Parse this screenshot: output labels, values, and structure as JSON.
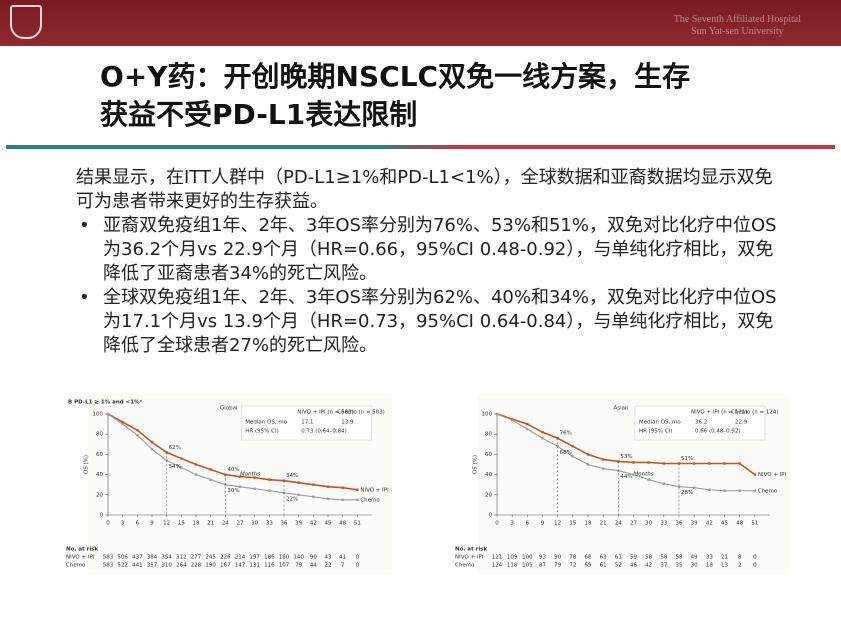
{
  "header": {
    "institution": [
      "The Seventh Affiliated Hospital",
      "Sun Yat-sen University"
    ]
  },
  "title": [
    "O+Y药：开创晚期NSCLC双免一线方案，生存",
    "获益不受PD-L1表达限制"
  ],
  "body": {
    "intro": "结果显示，在ITT人群中（PD-L1≥1%和PD-L1<1%），全球数据和亚裔数据均显示双免可为患者带来更好的生存获益。",
    "bullets": [
      "亚裔双免疫组1年、2年、3年OS率分别为76%、53%和51%，双免对比化疗中位OS为36.2个月vs 22.9个月（HR=0.66，95%CI 0.48-0.92），与单纯化疗相比，双免降低了亚裔患者34%的死亡风险。",
      "全球双免疫组1年、2年、3年OS率分别为62%、40%和34%，双免对比化疗中位OS为17.1个月vs 13.9个月（HR=0.73，95%CI 0.64-0.84），与单纯化疗相比，双免降低了全球患者27%的死亡风险。"
    ]
  },
  "chart_data": [
    {
      "type": "line",
      "panel_label": "B PD-L1 ≥ 1% and <1%ᵃ",
      "title": "Global",
      "xlabel": "Months",
      "ylabel": "OS (%)",
      "x": [
        0,
        3,
        6,
        9,
        12,
        15,
        18,
        21,
        24,
        27,
        30,
        33,
        36,
        39,
        42,
        45,
        48,
        51
      ],
      "series": [
        {
          "name": "NIVO + IPI",
          "color": "#c5522b",
          "values": [
            100,
            92,
            84,
            72,
            62,
            56,
            50,
            45,
            40,
            38,
            37,
            35,
            34,
            32,
            30,
            28,
            27,
            25
          ]
        },
        {
          "name": "Chemo",
          "color": "#9c9c9c",
          "values": [
            100,
            90,
            79,
            65,
            54,
            47,
            40,
            35,
            30,
            28,
            26,
            24,
            22,
            20,
            18,
            16,
            15,
            15
          ]
        }
      ],
      "annotations": [
        {
          "label": "62%",
          "x": 12,
          "value": 62
        },
        {
          "label": "54%",
          "x": 12,
          "value": 54
        },
        {
          "label": "40%",
          "x": 24,
          "value": 40
        },
        {
          "label": "30%",
          "x": 24,
          "value": 30
        },
        {
          "label": "34%",
          "x": 36,
          "value": 34
        },
        {
          "label": "22%",
          "x": 36,
          "value": 22
        }
      ],
      "info": {
        "columns": [
          "NIVO + IPI (n = 583)",
          "Chemo (n = 583)"
        ],
        "rows": [
          {
            "label": "Median OS, mo",
            "values": [
              "17.1",
              "13.9"
            ]
          },
          {
            "label": "HR (95% CI)",
            "values": [
              "0.73 (0.64–0.84)"
            ]
          }
        ]
      },
      "xlim": [
        0,
        54
      ],
      "ylim": [
        0,
        100
      ],
      "xticks": [
        0,
        3,
        6,
        9,
        12,
        15,
        18,
        21,
        24,
        27,
        30,
        33,
        36,
        39,
        42,
        45,
        48,
        51
      ],
      "yticks": [
        0,
        20,
        40,
        60,
        80,
        100
      ],
      "at_risk": {
        "title": "No. at risk",
        "rows": [
          {
            "name": "NIVO + IPI",
            "values": [
              583,
              506,
              437,
              384,
              354,
              312,
              277,
              245,
              226,
              214,
              197,
              186,
              180,
              140,
              90,
              43,
              41,
              0
            ]
          },
          {
            "name": "Chemo",
            "values": [
              583,
              522,
              441,
              357,
              310,
              264,
              228,
              190,
              167,
              147,
              131,
              116,
              107,
              79,
              44,
              22,
              7,
              0
            ]
          }
        ]
      }
    },
    {
      "type": "line",
      "title": "Asian",
      "xlabel": "Months",
      "ylabel": "OS (%)",
      "x": [
        0,
        3,
        6,
        9,
        12,
        15,
        18,
        21,
        24,
        27,
        30,
        33,
        36,
        39,
        42,
        45,
        48,
        51
      ],
      "series": [
        {
          "name": "NIVO + IPI",
          "color": "#c5522b",
          "values": [
            100,
            95,
            90,
            82,
            76,
            68,
            60,
            55,
            53,
            52,
            52,
            51,
            51,
            51,
            51,
            51,
            51,
            40
          ]
        },
        {
          "name": "Chemo",
          "color": "#9c9c9c",
          "values": [
            100,
            94,
            85,
            76,
            68,
            58,
            50,
            46,
            44,
            40,
            35,
            31,
            28,
            27,
            25,
            24,
            24,
            24
          ]
        }
      ],
      "annotations": [
        {
          "label": "76%",
          "x": 12,
          "value": 76
        },
        {
          "label": "68%",
          "x": 12,
          "value": 68
        },
        {
          "label": "53%",
          "x": 24,
          "value": 53
        },
        {
          "label": "44%",
          "x": 24,
          "value": 44
        },
        {
          "label": "51%",
          "x": 36,
          "value": 51
        },
        {
          "label": "28%",
          "x": 36,
          "value": 28
        }
      ],
      "info": {
        "columns": [
          "NIVO + IPI (n = 121)",
          "Chemo (n = 124)"
        ],
        "rows": [
          {
            "label": "Median OS, mo",
            "values": [
              "36.2",
              "22.9"
            ]
          },
          {
            "label": "HR (95% CI)",
            "values": [
              "0.66 (0.48–0.92)"
            ]
          }
        ]
      },
      "xlim": [
        0,
        54
      ],
      "ylim": [
        0,
        100
      ],
      "xticks": [
        0,
        3,
        6,
        9,
        12,
        15,
        18,
        21,
        24,
        27,
        30,
        33,
        36,
        39,
        42,
        45,
        48,
        51
      ],
      "yticks": [
        0,
        20,
        40,
        60,
        80,
        100
      ],
      "at_risk": {
        "title": "No. at risk",
        "rows": [
          {
            "name": "NIVO + IPI",
            "values": [
              121,
              109,
              100,
              93,
              90,
              78,
              68,
              63,
              61,
              59,
              58,
              58,
              58,
              49,
              33,
              21,
              8,
              0
            ]
          },
          {
            "name": "Chemo",
            "values": [
              124,
              118,
              105,
              87,
              79,
              72,
              69,
              61,
              52,
              46,
              42,
              37,
              35,
              30,
              18,
              13,
              2,
              0
            ]
          }
        ]
      }
    }
  ]
}
